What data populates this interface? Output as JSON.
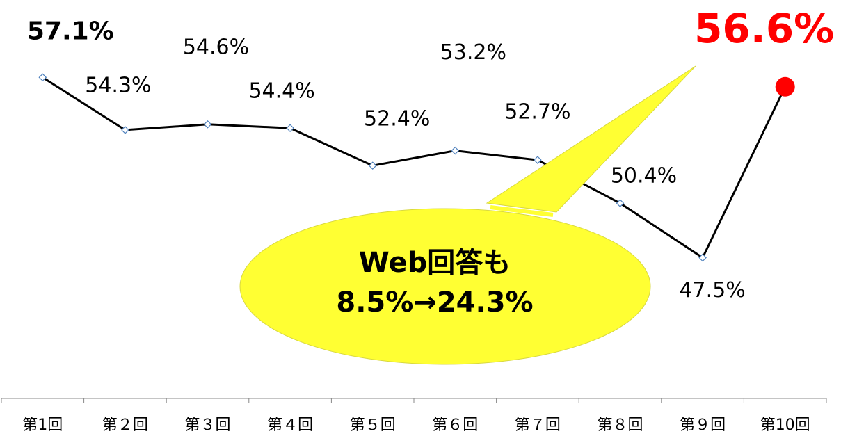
{
  "chart_data": {
    "type": "line",
    "categories": [
      "第1回",
      "第２回",
      "第３回",
      "第４回",
      "第５回",
      "第６回",
      "第７回",
      "第８回",
      "第９回",
      "第10回"
    ],
    "values": [
      57.1,
      54.3,
      54.6,
      54.4,
      52.4,
      53.2,
      52.7,
      50.4,
      47.5,
      56.6
    ],
    "value_labels": [
      "57.1%",
      "54.3%",
      "54.6%",
      "54.4%",
      "52.4%",
      "53.2%",
      "52.7%",
      "50.4%",
      "47.5%",
      "56.6%"
    ],
    "color": "#000000",
    "marker_color": "#4f81bd",
    "highlight_color": "#ff0000",
    "ylim": [
      40,
      60
    ],
    "annotation": [
      "Web回答も",
      "8.5%→24.3%"
    ]
  }
}
